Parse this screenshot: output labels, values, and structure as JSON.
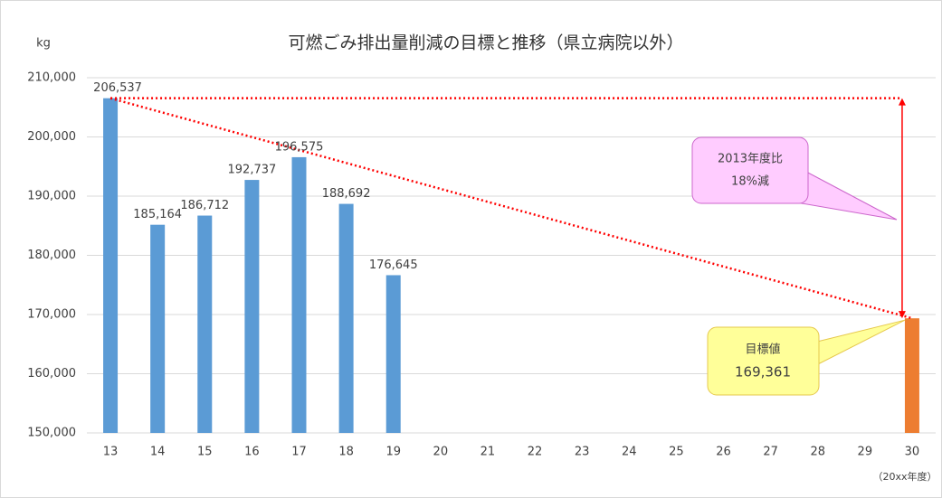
{
  "chart_data": {
    "type": "bar",
    "title": "可燃ごみ排出量削減の目標と推移（県立病院以外）",
    "y_axis_label": "kg",
    "x_axis_note": "（20xx年度）",
    "categories": [
      "13",
      "14",
      "15",
      "16",
      "17",
      "18",
      "19",
      "20",
      "21",
      "22",
      "23",
      "24",
      "25",
      "26",
      "27",
      "28",
      "29",
      "30"
    ],
    "values": [
      206537,
      185164,
      186712,
      192737,
      196575,
      188692,
      176645,
      null,
      null,
      null,
      null,
      null,
      null,
      null,
      null,
      null,
      null,
      169361
    ],
    "value_labels": [
      "206,537",
      "185,164",
      "186,712",
      "192,737",
      "196,575",
      "188,692",
      "176,645",
      null,
      null,
      null,
      null,
      null,
      null,
      null,
      null,
      null,
      null,
      "169,361"
    ],
    "colors": [
      "#5b9bd5",
      "#5b9bd5",
      "#5b9bd5",
      "#5b9bd5",
      "#5b9bd5",
      "#5b9bd5",
      "#5b9bd5",
      null,
      null,
      null,
      null,
      null,
      null,
      null,
      null,
      null,
      null,
      "#ed7d31"
    ],
    "ylim": [
      150000,
      210000
    ],
    "yticks": [
      {
        "value": 150000,
        "label": "150,000"
      },
      {
        "value": 160000,
        "label": "160,000"
      },
      {
        "value": 170000,
        "label": "170,000"
      },
      {
        "value": 180000,
        "label": "180,000"
      },
      {
        "value": 190000,
        "label": "190,000"
      },
      {
        "value": 200000,
        "label": "200,000"
      },
      {
        "value": 210000,
        "label": "210,000"
      }
    ],
    "grid": true,
    "annotations": [
      {
        "text": [
          "2013年度比",
          "18%減"
        ]
      },
      {
        "text": [
          "目標値"
        ]
      }
    ]
  }
}
